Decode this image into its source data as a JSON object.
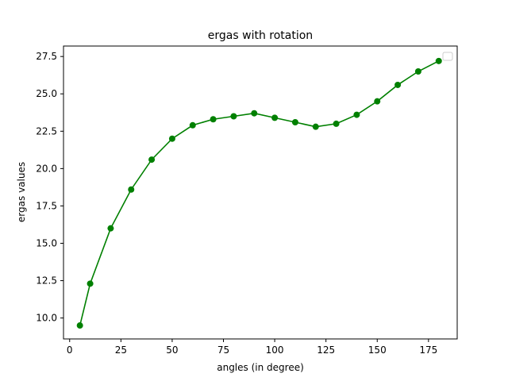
{
  "chart_data": {
    "type": "line",
    "title": "ergas with rotation",
    "xlabel": "angles (in degree)",
    "ylabel": "ergas values",
    "xlim": [
      -3,
      189
    ],
    "ylim": [
      8.6,
      28.2
    ],
    "x_ticks": [
      0,
      25,
      50,
      75,
      100,
      125,
      150,
      175
    ],
    "y_ticks": [
      10.0,
      12.5,
      15.0,
      17.5,
      20.0,
      22.5,
      25.0,
      27.5
    ],
    "x_tick_labels": [
      "0",
      "25",
      "50",
      "75",
      "100",
      "125",
      "150",
      "175"
    ],
    "y_tick_labels": [
      "10.0",
      "12.5",
      "15.0",
      "17.5",
      "20.0",
      "22.5",
      "25.0",
      "27.5"
    ],
    "grid": false,
    "legend": {
      "placement": "top-right",
      "entries": []
    },
    "series": [
      {
        "color": "#008000",
        "marker": "circle",
        "x": [
          5,
          10,
          20,
          30,
          40,
          50,
          60,
          70,
          80,
          90,
          100,
          110,
          120,
          130,
          140,
          150,
          160,
          170,
          180
        ],
        "values": [
          9.5,
          12.3,
          16.0,
          18.6,
          20.6,
          22.0,
          22.9,
          23.3,
          23.5,
          23.7,
          23.4,
          23.1,
          22.8,
          23.0,
          23.6,
          24.5,
          25.6,
          26.5,
          27.2
        ]
      }
    ]
  }
}
